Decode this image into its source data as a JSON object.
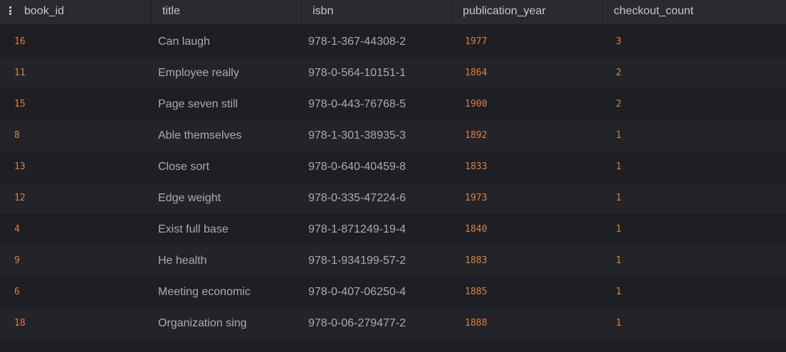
{
  "table": {
    "columns": [
      "book_id",
      "title",
      "isbn",
      "publication_year",
      "checkout_count"
    ],
    "rows": [
      {
        "book_id": "16",
        "title": "Can laugh",
        "isbn": "978-1-367-44308-2",
        "publication_year": "1977",
        "checkout_count": "3"
      },
      {
        "book_id": "11",
        "title": "Employee really",
        "isbn": "978-0-564-10151-1",
        "publication_year": "1864",
        "checkout_count": "2"
      },
      {
        "book_id": "15",
        "title": "Page seven still",
        "isbn": "978-0-443-76768-5",
        "publication_year": "1900",
        "checkout_count": "2"
      },
      {
        "book_id": "8",
        "title": "Able themselves",
        "isbn": "978-1-301-38935-3",
        "publication_year": "1892",
        "checkout_count": "1"
      },
      {
        "book_id": "13",
        "title": "Close sort",
        "isbn": "978-0-640-40459-8",
        "publication_year": "1833",
        "checkout_count": "1"
      },
      {
        "book_id": "12",
        "title": "Edge weight",
        "isbn": "978-0-335-47224-6",
        "publication_year": "1973",
        "checkout_count": "1"
      },
      {
        "book_id": "4",
        "title": "Exist full base",
        "isbn": "978-1-871249-19-4",
        "publication_year": "1840",
        "checkout_count": "1"
      },
      {
        "book_id": "9",
        "title": "He health",
        "isbn": "978-1-934199-57-2",
        "publication_year": "1883",
        "checkout_count": "1"
      },
      {
        "book_id": "6",
        "title": "Meeting economic",
        "isbn": "978-0-407-06250-4",
        "publication_year": "1885",
        "checkout_count": "1"
      },
      {
        "book_id": "18",
        "title": "Organization sing",
        "isbn": "978-0-06-279477-2",
        "publication_year": "1888",
        "checkout_count": "1"
      }
    ]
  },
  "theme": {
    "background": "#1d1e22",
    "header_background": "#2a2b30",
    "header_text": "#c4c6cc",
    "number_color": "#df7f3c",
    "text_color": "#a9abb2"
  },
  "icons": {
    "header_menu": "vertical-dots-menu-icon"
  }
}
